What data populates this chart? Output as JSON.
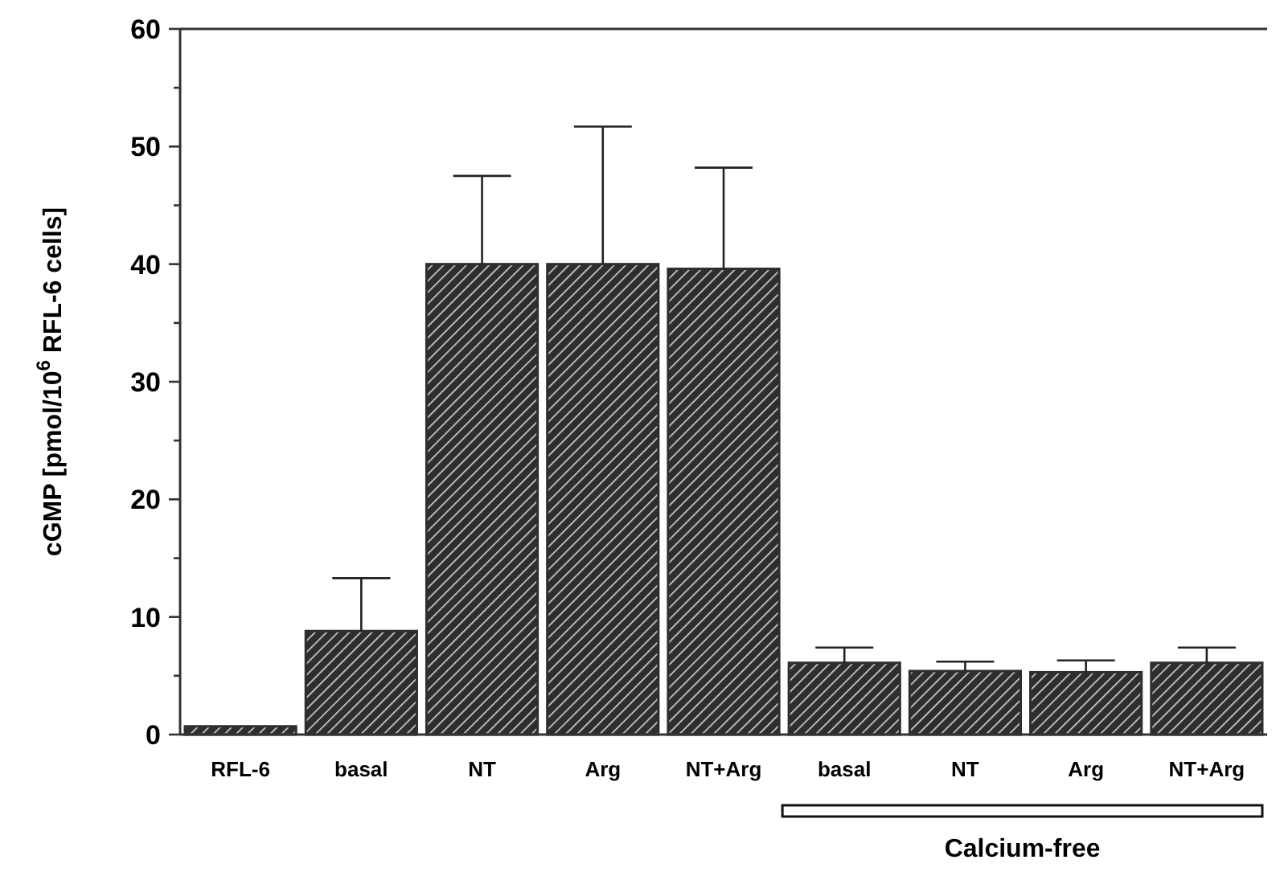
{
  "chart_data": {
    "type": "bar",
    "ylabel": "cGMP [pmol/10$^{6}$ RFL-6 cells]",
    "categories": [
      "RFL-6",
      "basal",
      "NT",
      "Arg",
      "NT+Arg",
      "basal",
      "NT",
      "Arg",
      "NT+Arg"
    ],
    "values": [
      0.7,
      8.8,
      40,
      40,
      39.6,
      6.1,
      5.4,
      5.3,
      6.1
    ],
    "errors": [
      null,
      [
        8.8,
        13.3
      ],
      [
        40,
        47.5
      ],
      [
        40,
        51.7
      ],
      [
        39.6,
        48.2
      ],
      [
        6.1,
        7.4
      ],
      [
        5.4,
        6.2
      ],
      [
        5.3,
        6.3
      ],
      [
        6.1,
        7.4
      ]
    ],
    "color": "#2e2e2e",
    "ylim": [
      0,
      60
    ],
    "yticks": [
      0,
      {
        "value": 5,
        "label": null
      },
      10,
      {
        "value": 15,
        "label": null
      },
      20,
      {
        "value": 25,
        "label": null
      },
      30,
      {
        "value": 35,
        "label": null
      },
      40,
      {
        "value": 45,
        "label": null
      },
      50,
      {
        "value": 55,
        "label": null
      },
      60
    ],
    "annotations": [
      "Calcium-free"
    ]
  }
}
